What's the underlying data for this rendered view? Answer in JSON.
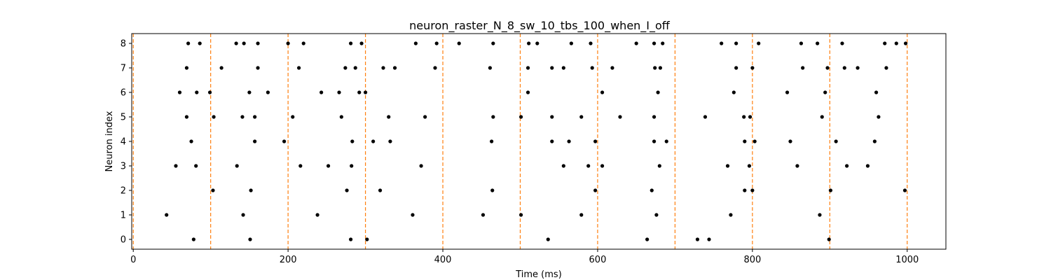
{
  "chart_data": {
    "type": "scatter",
    "title": "neuron_raster_N_8_sw_10_tbs_100_when_I_off",
    "xlabel": "Time (ms)",
    "ylabel": "Neuron index",
    "xlim": [
      -2,
      1050
    ],
    "ylim": [
      -0.4,
      8.4
    ],
    "xticks": [
      0,
      200,
      400,
      600,
      800,
      1000
    ],
    "yticks": [
      0,
      1,
      2,
      3,
      4,
      5,
      6,
      7,
      8
    ],
    "grid": false,
    "vline_color": "#ff7f0e",
    "marker_color": "#000000",
    "vlines": [
      0,
      100,
      200,
      300,
      400,
      500,
      600,
      700,
      800,
      900,
      1000
    ],
    "points": [
      [
        71,
        8
      ],
      [
        86,
        8
      ],
      [
        133,
        8
      ],
      [
        143,
        8
      ],
      [
        161,
        8
      ],
      [
        200,
        8
      ],
      [
        220,
        8
      ],
      [
        281,
        8
      ],
      [
        295,
        8
      ],
      [
        365,
        8
      ],
      [
        392,
        8
      ],
      [
        421,
        8
      ],
      [
        465,
        8
      ],
      [
        511,
        8
      ],
      [
        522,
        8
      ],
      [
        566,
        8
      ],
      [
        591,
        8
      ],
      [
        650,
        8
      ],
      [
        673,
        8
      ],
      [
        684,
        8
      ],
      [
        760,
        8
      ],
      [
        779,
        8
      ],
      [
        808,
        8
      ],
      [
        863,
        8
      ],
      [
        884,
        8
      ],
      [
        916,
        8
      ],
      [
        971,
        8
      ],
      [
        986,
        8
      ],
      [
        998,
        8
      ],
      [
        69,
        7
      ],
      [
        114,
        7
      ],
      [
        161,
        7
      ],
      [
        214,
        7
      ],
      [
        274,
        7
      ],
      [
        287,
        7
      ],
      [
        323,
        7
      ],
      [
        338,
        7
      ],
      [
        390,
        7
      ],
      [
        461,
        7
      ],
      [
        510,
        7
      ],
      [
        541,
        7
      ],
      [
        556,
        7
      ],
      [
        593,
        7
      ],
      [
        619,
        7
      ],
      [
        674,
        7
      ],
      [
        681,
        7
      ],
      [
        779,
        7
      ],
      [
        800,
        7
      ],
      [
        865,
        7
      ],
      [
        897,
        7
      ],
      [
        919,
        7
      ],
      [
        936,
        7
      ],
      [
        973,
        7
      ],
      [
        60,
        6
      ],
      [
        82,
        6
      ],
      [
        99,
        6
      ],
      [
        150,
        6
      ],
      [
        174,
        6
      ],
      [
        243,
        6
      ],
      [
        266,
        6
      ],
      [
        292,
        6
      ],
      [
        300,
        6
      ],
      [
        510,
        6
      ],
      [
        606,
        6
      ],
      [
        678,
        6
      ],
      [
        776,
        6
      ],
      [
        845,
        6
      ],
      [
        894,
        6
      ],
      [
        960,
        6
      ],
      [
        69,
        5
      ],
      [
        104,
        5
      ],
      [
        141,
        5
      ],
      [
        157,
        5
      ],
      [
        206,
        5
      ],
      [
        269,
        5
      ],
      [
        330,
        5
      ],
      [
        377,
        5
      ],
      [
        465,
        5
      ],
      [
        501,
        5
      ],
      [
        541,
        5
      ],
      [
        579,
        5
      ],
      [
        629,
        5
      ],
      [
        673,
        5
      ],
      [
        739,
        5
      ],
      [
        789,
        5
      ],
      [
        797,
        5
      ],
      [
        890,
        5
      ],
      [
        963,
        5
      ],
      [
        75,
        4
      ],
      [
        157,
        4
      ],
      [
        195,
        4
      ],
      [
        283,
        4
      ],
      [
        310,
        4
      ],
      [
        332,
        4
      ],
      [
        463,
        4
      ],
      [
        541,
        4
      ],
      [
        563,
        4
      ],
      [
        597,
        4
      ],
      [
        673,
        4
      ],
      [
        689,
        4
      ],
      [
        790,
        4
      ],
      [
        803,
        4
      ],
      [
        849,
        4
      ],
      [
        908,
        4
      ],
      [
        958,
        4
      ],
      [
        55,
        3
      ],
      [
        81,
        3
      ],
      [
        134,
        3
      ],
      [
        216,
        3
      ],
      [
        252,
        3
      ],
      [
        282,
        3
      ],
      [
        372,
        3
      ],
      [
        556,
        3
      ],
      [
        588,
        3
      ],
      [
        606,
        3
      ],
      [
        680,
        3
      ],
      [
        768,
        3
      ],
      [
        796,
        3
      ],
      [
        858,
        3
      ],
      [
        922,
        3
      ],
      [
        949,
        3
      ],
      [
        103,
        2
      ],
      [
        152,
        2
      ],
      [
        276,
        2
      ],
      [
        319,
        2
      ],
      [
        464,
        2
      ],
      [
        597,
        2
      ],
      [
        670,
        2
      ],
      [
        790,
        2
      ],
      [
        800,
        2
      ],
      [
        901,
        2
      ],
      [
        997,
        2
      ],
      [
        43,
        1
      ],
      [
        142,
        1
      ],
      [
        238,
        1
      ],
      [
        361,
        1
      ],
      [
        452,
        1
      ],
      [
        501,
        1
      ],
      [
        579,
        1
      ],
      [
        676,
        1
      ],
      [
        772,
        1
      ],
      [
        887,
        1
      ],
      [
        78,
        0
      ],
      [
        151,
        0
      ],
      [
        281,
        0
      ],
      [
        302,
        0
      ],
      [
        536,
        0
      ],
      [
        664,
        0
      ],
      [
        729,
        0
      ],
      [
        744,
        0
      ],
      [
        899,
        0
      ]
    ]
  }
}
